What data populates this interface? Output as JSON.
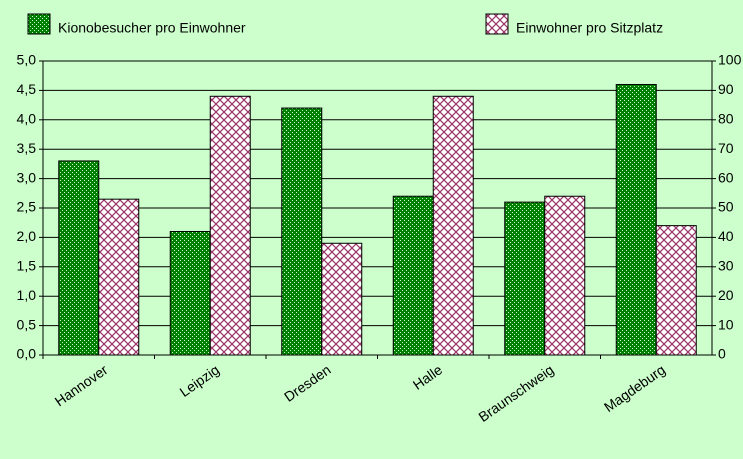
{
  "chart_data": {
    "type": "bar",
    "categories": [
      "Hannover",
      "Leipzig",
      "Dresden",
      "Halle",
      "Braunschweig",
      "Magdeburg"
    ],
    "series": [
      {
        "name": "Kionobesucher pro Einwohner",
        "color": "#008000",
        "values": [
          3.3,
          2.1,
          4.2,
          2.7,
          2.6,
          4.6
        ]
      },
      {
        "name": "Einwohner pro Sitzplatz",
        "color": "#993366",
        "axis": "y2",
        "values": [
          53,
          88,
          38,
          88,
          54,
          44
        ]
      }
    ],
    "ylim": [
      0,
      5
    ],
    "yticks": [
      {
        "value": 0,
        "label": "0,0"
      },
      {
        "value": 0.5,
        "label": "0,5"
      },
      {
        "value": 1,
        "label": "1,0"
      },
      {
        "value": 1.5,
        "label": "1,5"
      },
      {
        "value": 2,
        "label": "2,0"
      },
      {
        "value": 2.5,
        "label": "2,5"
      },
      {
        "value": 3,
        "label": "3,0"
      },
      {
        "value": 3.5,
        "label": "3,5"
      },
      {
        "value": 4,
        "label": "4,0"
      },
      {
        "value": 4.5,
        "label": "4,5"
      },
      {
        "value": 5,
        "label": "5,0"
      }
    ],
    "y2lim": [
      0,
      100
    ],
    "y2ticks": [
      0,
      10,
      20,
      30,
      40,
      50,
      60,
      70,
      80,
      90,
      100
    ],
    "grid": true,
    "legend": "top"
  }
}
